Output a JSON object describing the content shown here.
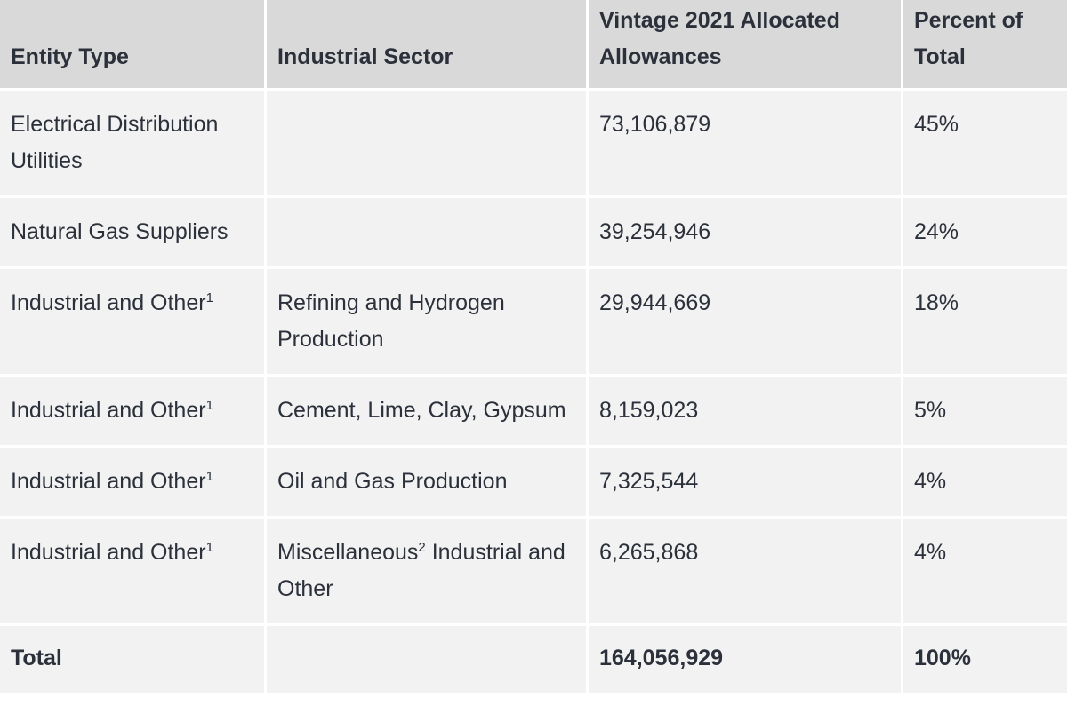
{
  "table": {
    "headers": [
      "Entity Type",
      "Industrial Sector",
      "Vintage 2021 Allocated Allowances",
      "Percent of Total"
    ],
    "rows": [
      {
        "entity": "Electrical Distribution Utilities",
        "entity_sup": "",
        "sector": "",
        "sector_sup": "",
        "sector_rest": "",
        "allowances": "73,106,879",
        "percent": "45%"
      },
      {
        "entity": "Natural Gas Suppliers",
        "entity_sup": "",
        "sector": "",
        "sector_sup": "",
        "sector_rest": "",
        "allowances": "39,254,946",
        "percent": "24%"
      },
      {
        "entity": "Industrial and Other",
        "entity_sup": "1",
        "sector": "Refining and Hydrogen Production",
        "sector_sup": "",
        "sector_rest": "",
        "allowances": "29,944,669",
        "percent": "18%"
      },
      {
        "entity": "Industrial and Other",
        "entity_sup": "1",
        "sector": "Cement, Lime, Clay, Gypsum",
        "sector_sup": "",
        "sector_rest": "",
        "allowances": "8,159,023",
        "percent": "5%"
      },
      {
        "entity": "Industrial and Other",
        "entity_sup": "1",
        "sector": "Oil and Gas Production",
        "sector_sup": "",
        "sector_rest": "",
        "allowances": "7,325,544",
        "percent": "4%"
      },
      {
        "entity": "Industrial and Other",
        "entity_sup": "1",
        "sector": "Miscellaneous",
        "sector_sup": "2",
        "sector_rest": " Industrial and Other",
        "allowances": "6,265,868",
        "percent": "4%"
      }
    ],
    "total": {
      "label": "Total",
      "sector": "",
      "allowances": "164,056,929",
      "percent": "100%"
    }
  },
  "colors": {
    "header_bg": "#d9d9d9",
    "cell_bg": "#f2f2f2",
    "border": "#ffffff",
    "text": "#2b303a"
  }
}
